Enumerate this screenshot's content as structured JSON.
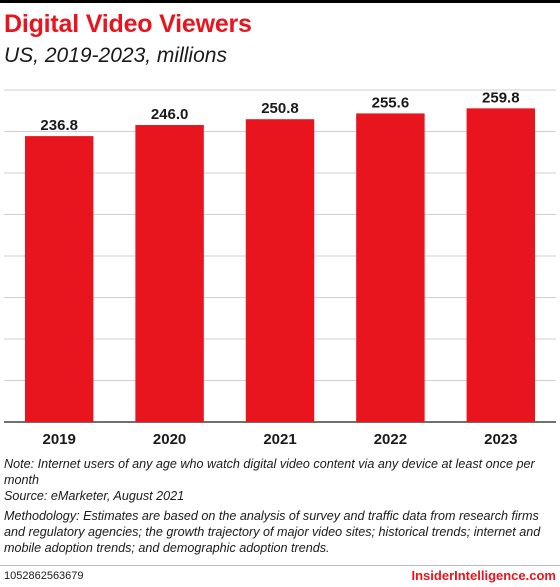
{
  "header": {
    "title": "Digital Video Viewers",
    "subtitle": "US, 2019-2023, millions"
  },
  "chart_data": {
    "type": "bar",
    "categories": [
      "2019",
      "2020",
      "2021",
      "2022",
      "2023"
    ],
    "values": [
      236.8,
      246.0,
      250.8,
      255.6,
      259.8
    ],
    "value_labels": [
      "236.8",
      "246.0",
      "250.8",
      "255.6",
      "259.8"
    ],
    "xlabel": "",
    "ylabel": "",
    "ylim": [
      0,
      275
    ],
    "grid": true,
    "bar_color": "#e8141e",
    "grid_color": "#cfcfcf"
  },
  "notes": {
    "note": "Note:  Internet users of any age who watch digital video content via any device at least once per month",
    "source": "Source: eMarketer, August 2021",
    "methodology": "Methodology: Estimates are based on the analysis of survey and traffic data from research firms and regulatory agencies; the growth trajectory of major video sites; historical trends; internet and mobile adoption trends; and demographic adoption trends."
  },
  "footer": {
    "chart_id": "1052862563679",
    "brand": "InsiderIntelligence.com"
  }
}
